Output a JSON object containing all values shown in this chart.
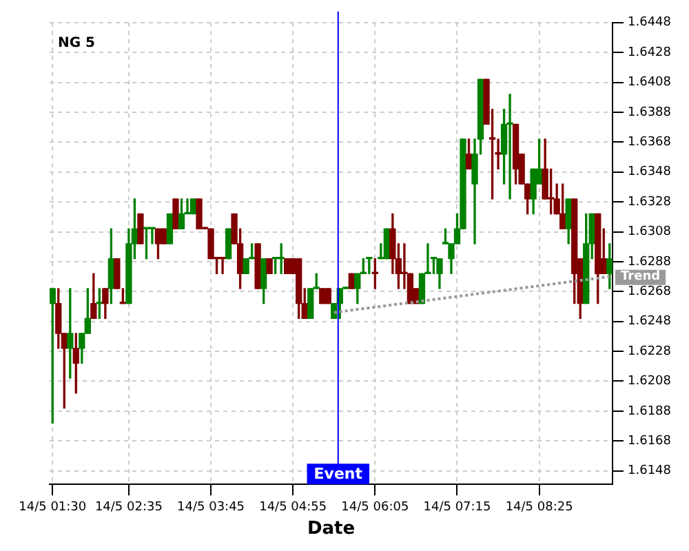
{
  "chart_data": {
    "type": "candlestick",
    "title": "NG 5",
    "xlabel": "Date",
    "categories": [
      "14/5 01:30",
      null,
      null,
      null,
      null,
      null,
      null,
      null,
      null,
      null,
      null,
      null,
      null,
      "14/5 02:35",
      null,
      null,
      null,
      null,
      null,
      null,
      null,
      null,
      null,
      null,
      null,
      null,
      null,
      "14/5 03:45",
      null,
      null,
      null,
      null,
      null,
      null,
      null,
      null,
      null,
      null,
      null,
      null,
      null,
      "14/5 04:55",
      null,
      null,
      null,
      null,
      null,
      null,
      null,
      null,
      null,
      null,
      null,
      null,
      null,
      "14/5 06:05",
      null,
      null,
      null,
      null,
      null,
      null,
      null,
      null,
      null,
      null,
      null,
      null,
      null,
      "14/5 07:15",
      null,
      null,
      null,
      null,
      null,
      null,
      null,
      null,
      null,
      null,
      null,
      null,
      null,
      "14/5 08:25",
      null,
      null,
      null,
      null,
      null,
      null,
      null,
      null,
      null,
      null,
      null,
      null
    ],
    "ohlc": [
      [
        1.626,
        1.627,
        1.618,
        1.627
      ],
      [
        1.626,
        1.627,
        1.623,
        1.624
      ],
      [
        1.624,
        1.624,
        1.619,
        1.623
      ],
      [
        1.623,
        1.627,
        1.621,
        1.624
      ],
      [
        1.623,
        1.624,
        1.62,
        1.622
      ],
      [
        1.623,
        1.624,
        1.622,
        1.624
      ],
      [
        1.624,
        1.627,
        1.624,
        1.625
      ],
      [
        1.626,
        1.628,
        1.625,
        1.625
      ],
      [
        1.626,
        1.627,
        1.625,
        1.626
      ],
      [
        1.627,
        1.627,
        1.625,
        1.626
      ],
      [
        1.627,
        1.631,
        1.626,
        1.629
      ],
      [
        1.629,
        1.629,
        1.627,
        1.627
      ],
      [
        1.626,
        1.627,
        1.626,
        1.626
      ],
      [
        1.626,
        1.631,
        1.626,
        1.63
      ],
      [
        1.63,
        1.633,
        1.629,
        1.631
      ],
      [
        1.632,
        1.632,
        1.63,
        1.63
      ],
      [
        1.631,
        1.631,
        1.629,
        1.631
      ],
      [
        1.631,
        1.631,
        1.63,
        1.631
      ],
      [
        1.631,
        1.631,
        1.629,
        1.63
      ],
      [
        1.631,
        1.631,
        1.63,
        1.63
      ],
      [
        1.63,
        1.632,
        1.63,
        1.632
      ],
      [
        1.633,
        1.633,
        1.631,
        1.631
      ],
      [
        1.631,
        1.633,
        1.631,
        1.632
      ],
      [
        1.632,
        1.633,
        1.632,
        1.632
      ],
      [
        1.632,
        1.633,
        1.632,
        1.633
      ],
      [
        1.633,
        1.633,
        1.631,
        1.631
      ],
      [
        1.631,
        1.631,
        1.631,
        1.631
      ],
      [
        1.631,
        1.631,
        1.629,
        1.629
      ],
      [
        1.629,
        1.629,
        1.628,
        1.629
      ],
      [
        1.629,
        1.629,
        1.628,
        1.629
      ],
      [
        1.629,
        1.631,
        1.629,
        1.631
      ],
      [
        1.632,
        1.632,
        1.63,
        1.63
      ],
      [
        1.63,
        1.631,
        1.627,
        1.628
      ],
      [
        1.628,
        1.629,
        1.628,
        1.629
      ],
      [
        1.629,
        1.63,
        1.629,
        1.629
      ],
      [
        1.63,
        1.63,
        1.627,
        1.627
      ],
      [
        1.627,
        1.629,
        1.626,
        1.629
      ],
      [
        1.629,
        1.629,
        1.628,
        1.628
      ],
      [
        1.629,
        1.629,
        1.628,
        1.629
      ],
      [
        1.629,
        1.63,
        1.628,
        1.629
      ],
      [
        1.629,
        1.629,
        1.628,
        1.628
      ],
      [
        1.629,
        1.629,
        1.628,
        1.628
      ],
      [
        1.629,
        1.629,
        1.625,
        1.626
      ],
      [
        1.626,
        1.627,
        1.625,
        1.625
      ],
      [
        1.625,
        1.627,
        1.625,
        1.627
      ],
      [
        1.627,
        1.628,
        1.627,
        1.627
      ],
      [
        1.627,
        1.627,
        1.626,
        1.626
      ],
      [
        1.627,
        1.627,
        1.626,
        1.626
      ],
      [
        1.625,
        1.626,
        1.625,
        1.626
      ],
      [
        1.626,
        1.627,
        1.625,
        1.627
      ],
      [
        1.627,
        1.627,
        1.627,
        1.627
      ],
      [
        1.628,
        1.628,
        1.627,
        1.627
      ],
      [
        1.627,
        1.628,
        1.626,
        1.628
      ],
      [
        1.628,
        1.629,
        1.628,
        1.628
      ],
      [
        1.629,
        1.629,
        1.628,
        1.629
      ],
      [
        1.628,
        1.629,
        1.627,
        1.628
      ],
      [
        1.629,
        1.63,
        1.629,
        1.629
      ],
      [
        1.629,
        1.631,
        1.629,
        1.631
      ],
      [
        1.631,
        1.632,
        1.628,
        1.629
      ],
      [
        1.629,
        1.63,
        1.627,
        1.628
      ],
      [
        1.628,
        1.63,
        1.627,
        1.628
      ],
      [
        1.628,
        1.628,
        1.626,
        1.626
      ],
      [
        1.627,
        1.627,
        1.626,
        1.626
      ],
      [
        1.626,
        1.628,
        1.626,
        1.628
      ],
      [
        1.628,
        1.63,
        1.628,
        1.628
      ],
      [
        1.629,
        1.629,
        1.628,
        1.629
      ],
      [
        1.628,
        1.629,
        1.627,
        1.629
      ],
      [
        1.63,
        1.631,
        1.63,
        1.63
      ],
      [
        1.629,
        1.63,
        1.628,
        1.63
      ],
      [
        1.63,
        1.632,
        1.63,
        1.631
      ],
      [
        1.631,
        1.637,
        1.631,
        1.637
      ],
      [
        1.636,
        1.637,
        1.635,
        1.635
      ],
      [
        1.634,
        1.637,
        1.63,
        1.636
      ],
      [
        1.637,
        1.641,
        1.636,
        1.641
      ],
      [
        1.641,
        1.641,
        1.638,
        1.638
      ],
      [
        1.637,
        1.639,
        1.633,
        1.637
      ],
      [
        1.636,
        1.637,
        1.635,
        1.636
      ],
      [
        1.636,
        1.639,
        1.634,
        1.638
      ],
      [
        1.638,
        1.64,
        1.633,
        1.638
      ],
      [
        1.638,
        1.638,
        1.634,
        1.635
      ],
      [
        1.636,
        1.636,
        1.634,
        1.634
      ],
      [
        1.634,
        1.634,
        1.632,
        1.633
      ],
      [
        1.633,
        1.635,
        1.632,
        1.635
      ],
      [
        1.634,
        1.637,
        1.634,
        1.635
      ],
      [
        1.635,
        1.637,
        1.633,
        1.633
      ],
      [
        1.633,
        1.635,
        1.632,
        1.633
      ],
      [
        1.633,
        1.634,
        1.632,
        1.632
      ],
      [
        1.632,
        1.634,
        1.631,
        1.631
      ],
      [
        1.631,
        1.633,
        1.63,
        1.633
      ],
      [
        1.633,
        1.633,
        1.626,
        1.628
      ],
      [
        1.629,
        1.629,
        1.625,
        1.626
      ],
      [
        1.626,
        1.632,
        1.626,
        1.63
      ],
      [
        1.63,
        1.632,
        1.629,
        1.632
      ],
      [
        1.632,
        1.632,
        1.626,
        1.628
      ],
      [
        1.629,
        1.631,
        1.628,
        1.628
      ],
      [
        1.628,
        1.63,
        1.627,
        1.629
      ]
    ],
    "colors": [
      "#008000",
      "#800000",
      "#800000",
      "#008000",
      "#800000",
      "#008000",
      "#008000",
      "#800000",
      "#008000",
      "#800000",
      "#008000",
      "#800000",
      "#800000",
      "#008000",
      "#008000",
      "#800000",
      "#008000",
      "#008000",
      "#800000",
      "#800000",
      "#008000",
      "#800000",
      "#008000",
      "#008000",
      "#008000",
      "#800000",
      "#800000",
      "#800000",
      "#800000",
      "#800000",
      "#008000",
      "#800000",
      "#800000",
      "#008000",
      "#008000",
      "#800000",
      "#008000",
      "#800000",
      "#008000",
      "#008000",
      "#800000",
      "#800000",
      "#800000",
      "#800000",
      "#008000",
      "#008000",
      "#800000",
      "#800000",
      "#008000",
      "#008000",
      "#008000",
      "#800000",
      "#008000",
      "#008000",
      "#008000",
      "#800000",
      "#008000",
      "#008000",
      "#800000",
      "#800000",
      "#800000",
      "#800000",
      "#800000",
      "#008000",
      "#008000",
      "#008000",
      "#008000",
      "#008000",
      "#008000",
      "#008000",
      "#008000",
      "#800000",
      "#008000",
      "#008000",
      "#800000",
      "#800000",
      "#800000",
      "#008000",
      "#008000",
      "#800000",
      "#800000",
      "#800000",
      "#008000",
      "#008000",
      "#800000",
      "#800000",
      "#800000",
      "#800000",
      "#008000",
      "#800000",
      "#800000",
      "#008000",
      "#008000",
      "#800000",
      "#800000",
      "#008000"
    ],
    "series": [
      {
        "name": "Trend",
        "type": "line",
        "color": "#999999",
        "line_style": "dotted",
        "values": [
          null,
          null,
          null,
          null,
          null,
          null,
          null,
          null,
          null,
          null,
          null,
          null,
          null,
          null,
          null,
          null,
          null,
          null,
          null,
          null,
          null,
          null,
          null,
          null,
          null,
          null,
          null,
          null,
          null,
          null,
          null,
          null,
          null,
          null,
          null,
          null,
          null,
          null,
          null,
          null,
          null,
          null,
          null,
          null,
          null,
          null,
          null,
          null,
          1.6254,
          null,
          null,
          null,
          null,
          null,
          null,
          null,
          null,
          null,
          null,
          null,
          null,
          null,
          null,
          null,
          null,
          null,
          null,
          null,
          null,
          null,
          null,
          null,
          null,
          null,
          null,
          null,
          null,
          null,
          null,
          null,
          null,
          null,
          null,
          null,
          null,
          null,
          null,
          null,
          null,
          null,
          null,
          null,
          null,
          null,
          null,
          1.6278
        ]
      }
    ],
    "annotations": [
      "Event"
    ],
    "ylim": [
      1.6139,
      1.6448
    ],
    "yticks": [
      1.6148,
      1.6168,
      1.6188,
      1.6208,
      1.6228,
      1.6248,
      1.6268,
      1.6288,
      1.6308,
      1.6328,
      1.6348,
      1.6368,
      1.6388,
      1.6408,
      1.6428,
      1.6448
    ],
    "grid": true,
    "legend": false
  }
}
